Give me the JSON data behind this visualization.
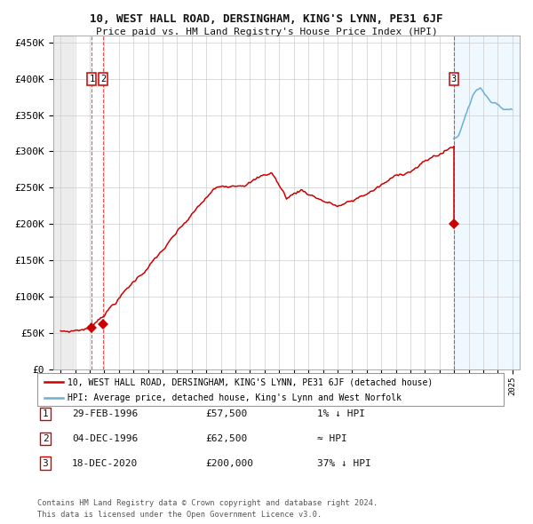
{
  "title1": "10, WEST HALL ROAD, DERSINGHAM, KING'S LYNN, PE31 6JF",
  "title2": "Price paid vs. HM Land Registry's House Price Index (HPI)",
  "legend1": "10, WEST HALL ROAD, DERSINGHAM, KING'S LYNN, PE31 6JF (detached house)",
  "legend2": "HPI: Average price, detached house, King's Lynn and West Norfolk",
  "sale1_date": "29-FEB-1996",
  "sale1_price": 57500,
  "sale1_hpi_rel": "1% ↓ HPI",
  "sale2_date": "04-DEC-1996",
  "sale2_price": 62500,
  "sale2_hpi_rel": "≈ HPI",
  "sale3_date": "18-DEC-2020",
  "sale3_price": 200000,
  "sale3_hpi_rel": "37% ↓ HPI",
  "sale1_x": 1996.15,
  "sale2_x": 1996.92,
  "sale3_x": 2020.96,
  "footer1": "Contains HM Land Registry data © Crown copyright and database right 2024.",
  "footer2": "This data is licensed under the Open Government Licence v3.0.",
  "hpi_color": "#6baed6",
  "price_color": "#cc0000",
  "background_color": "#ffffff",
  "vline_color": "#cc0000",
  "grid_color": "#cccccc",
  "ylim": [
    0,
    460000
  ],
  "xlim_start": 1993.5,
  "xlim_end": 2025.5
}
